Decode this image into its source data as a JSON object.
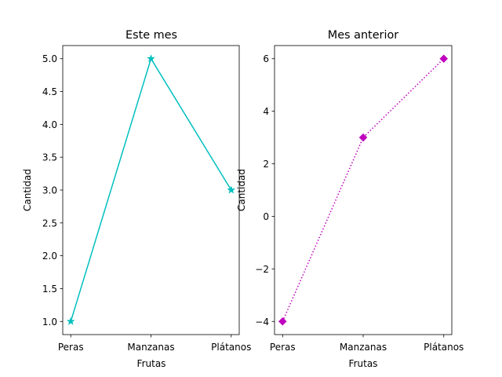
{
  "chart_data": [
    {
      "type": "line",
      "title": "Este mes",
      "xlabel": "Frutas",
      "ylabel": "Cantidad",
      "categories": [
        "Peras",
        "Manzanas",
        "Plátanos"
      ],
      "series": [
        {
          "values": [
            1,
            5,
            3
          ],
          "color": "#00bfbf",
          "linestyle": "solid",
          "marker": "star"
        }
      ],
      "ylim": [
        0.8,
        5.2
      ],
      "yticks": [
        1.0,
        1.5,
        2.0,
        2.5,
        3.0,
        3.5,
        4.0,
        4.5,
        5.0
      ],
      "ytick_labels": [
        "1.0",
        "1.5",
        "2.0",
        "2.5",
        "3.0",
        "3.5",
        "4.0",
        "4.5",
        "5.0"
      ],
      "grid": false
    },
    {
      "type": "line",
      "title": "Mes anterior",
      "xlabel": "Frutas",
      "ylabel": "Cantidad",
      "categories": [
        "Peras",
        "Manzanas",
        "Plátanos"
      ],
      "series": [
        {
          "values": [
            -4,
            3,
            6
          ],
          "color": "#bf00bf",
          "linestyle": "dotted",
          "marker": "diamond"
        }
      ],
      "ylim": [
        -4.5,
        6.5
      ],
      "yticks": [
        -4,
        -2,
        0,
        2,
        4,
        6
      ],
      "ytick_labels": [
        "−4",
        "−2",
        "0",
        "2",
        "4",
        "6"
      ],
      "grid": false
    }
  ]
}
